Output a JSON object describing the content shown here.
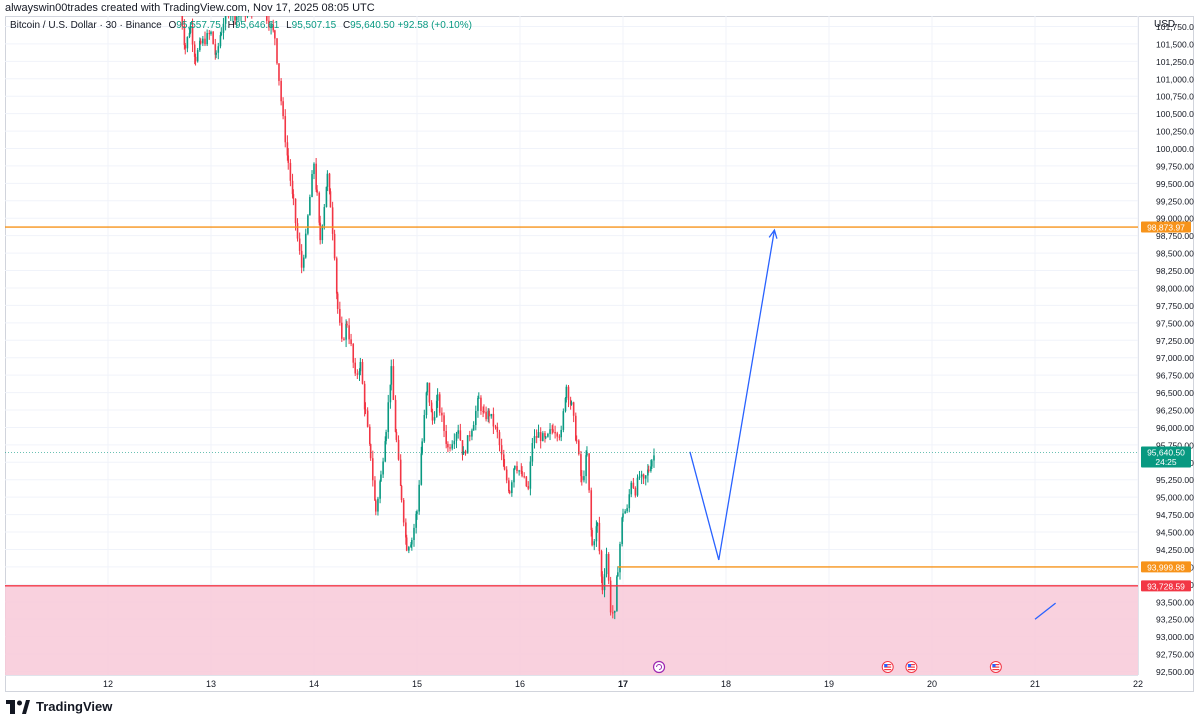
{
  "credit": "alwayswin00trades created with TradingView.com, Nov 17, 2025 08:05 UTC",
  "legend": {
    "symbol": "Bitcoin / U.S. Dollar · 30 · Binance",
    "o_label": "O",
    "o_value": "95,557.75",
    "h_label": "H",
    "h_value": "95,646.61",
    "l_label": "L",
    "l_value": "95,507.15",
    "c_label": "C",
    "c_value": "95,640.50",
    "change": "+92.58 (+0.10%)"
  },
  "currency": "USD",
  "brand": {
    "name": "TradingView",
    "icon": "tradingview-logo-icon"
  },
  "colors": {
    "up": "#089981",
    "down": "#f23645",
    "resistance": "#f7931a",
    "zone": "#f8c9d8",
    "projection": "#2962ff"
  },
  "event_icons": [
    "refresh-event-icon",
    "us-flag-event-icon",
    "us-flag-event-icon",
    "us-flag-event-icon"
  ],
  "chart_data": {
    "type": "candlestick",
    "timeframe": "30",
    "x_ticks": [
      "12",
      "13",
      "14",
      "15",
      "16",
      "17",
      "18",
      "19",
      "20",
      "21",
      "22"
    ],
    "y_ticks": [
      "92,500.00",
      "92,750.00",
      "93,000.00",
      "93,250.00",
      "93,500.00",
      "93,750.00",
      "94,000.00",
      "94,250.00",
      "94,500.00",
      "94,750.00",
      "95,000.00",
      "95,250.00",
      "95,500.00",
      "95,750.00",
      "96,000.00",
      "96,250.00",
      "96,500.00",
      "96,750.00",
      "97,000.00",
      "97,250.00",
      "97,500.00",
      "97,750.00",
      "98,000.00",
      "98,250.00",
      "98,500.00",
      "98,750.00",
      "99,000.00",
      "99,250.00",
      "99,500.00",
      "99,750.00",
      "100,000.00",
      "100,250.00",
      "100,500.00",
      "100,750.00",
      "101,000.00",
      "101,250.00",
      "101,500.00",
      "101,750.00"
    ],
    "ylim": [
      92450,
      101900
    ],
    "xlim": [
      11.0,
      22.0
    ],
    "path": [
      [
        12.7,
        102050
      ],
      [
        12.75,
        101450
      ],
      [
        12.8,
        101750
      ],
      [
        12.85,
        101300
      ],
      [
        12.9,
        101500
      ],
      [
        13.0,
        101650
      ],
      [
        13.05,
        101300
      ],
      [
        13.1,
        101700
      ],
      [
        13.15,
        102000
      ],
      [
        13.25,
        101900
      ],
      [
        13.5,
        102050
      ],
      [
        13.62,
        101600
      ],
      [
        13.66,
        101000
      ],
      [
        13.7,
        100400
      ],
      [
        13.75,
        99800
      ],
      [
        13.8,
        99200
      ],
      [
        13.84,
        98700
      ],
      [
        13.88,
        98300
      ],
      [
        13.92,
        98700
      ],
      [
        13.96,
        99300
      ],
      [
        14.0,
        99800
      ],
      [
        14.03,
        99300
      ],
      [
        14.06,
        98700
      ],
      [
        14.1,
        99200
      ],
      [
        14.13,
        99600
      ],
      [
        14.16,
        99200
      ],
      [
        14.2,
        98500
      ],
      [
        14.23,
        97700
      ],
      [
        14.27,
        97200
      ],
      [
        14.32,
        97500
      ],
      [
        14.36,
        97150
      ],
      [
        14.4,
        96700
      ],
      [
        14.45,
        96900
      ],
      [
        14.5,
        96200
      ],
      [
        14.55,
        95600
      ],
      [
        14.6,
        94800
      ],
      [
        14.65,
        95300
      ],
      [
        14.7,
        96000
      ],
      [
        14.75,
        96800
      ],
      [
        14.8,
        95800
      ],
      [
        14.85,
        95000
      ],
      [
        14.9,
        94300
      ],
      [
        14.95,
        94400
      ],
      [
        15.0,
        94800
      ],
      [
        15.05,
        95800
      ],
      [
        15.1,
        96600
      ],
      [
        15.15,
        96100
      ],
      [
        15.2,
        96400
      ],
      [
        15.3,
        95700
      ],
      [
        15.4,
        96000
      ],
      [
        15.45,
        95600
      ],
      [
        15.55,
        96100
      ],
      [
        15.6,
        96400
      ],
      [
        15.65,
        96150
      ],
      [
        15.7,
        96200
      ],
      [
        15.78,
        95900
      ],
      [
        15.85,
        95350
      ],
      [
        15.9,
        95100
      ],
      [
        15.95,
        95500
      ],
      [
        16.02,
        95300
      ],
      [
        16.08,
        95100
      ],
      [
        16.12,
        95800
      ],
      [
        16.18,
        95900
      ],
      [
        16.25,
        95800
      ],
      [
        16.32,
        96000
      ],
      [
        16.4,
        95900
      ],
      [
        16.45,
        96600
      ],
      [
        16.5,
        96300
      ],
      [
        16.55,
        95800
      ],
      [
        16.6,
        95200
      ],
      [
        16.65,
        95600
      ],
      [
        16.7,
        94300
      ],
      [
        16.75,
        94600
      ],
      [
        16.8,
        93700
      ],
      [
        16.84,
        94200
      ],
      [
        16.88,
        93400
      ],
      [
        16.92,
        93300
      ],
      [
        16.95,
        94000
      ],
      [
        17.0,
        94800
      ],
      [
        17.04,
        94800
      ],
      [
        17.08,
        95250
      ],
      [
        17.12,
        95100
      ],
      [
        17.16,
        95300
      ],
      [
        17.2,
        95200
      ],
      [
        17.25,
        95400
      ],
      [
        17.28,
        95550
      ],
      [
        17.32,
        95640
      ]
    ],
    "annotations": [
      {
        "type": "hline",
        "price": 98873.97,
        "label": "98,873.97",
        "color": "#f7931a"
      },
      {
        "type": "hline",
        "price": 93999.88,
        "label": "93,999.88",
        "color": "#f7931a"
      },
      {
        "type": "hline",
        "price": 93728.59,
        "label": "93,728.59",
        "color": "#f23645"
      },
      {
        "type": "zone",
        "from": 92450,
        "to": 93728.59,
        "color": "#f8c9d8"
      },
      {
        "type": "projection",
        "points": [
          [
            17.65,
            95650
          ],
          [
            17.93,
            94100
          ],
          [
            18.47,
            98830
          ]
        ],
        "color": "#2962ff"
      },
      {
        "type": "projection",
        "points": [
          [
            21.0,
            93250
          ],
          [
            21.2,
            93480
          ]
        ],
        "color": "#2962ff"
      }
    ],
    "last_price": {
      "price": 95640.5,
      "label": "95,640.50",
      "countdown": "24:25",
      "color": "#089981"
    }
  }
}
